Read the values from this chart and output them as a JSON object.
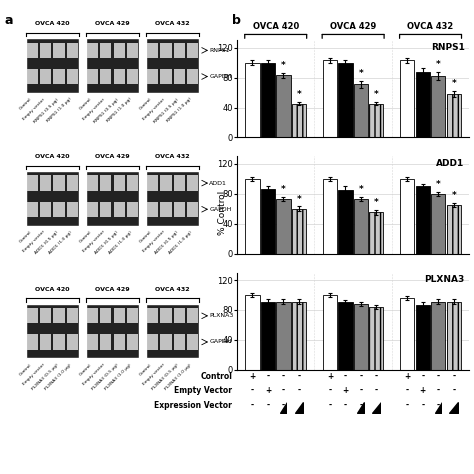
{
  "cell_lines": [
    "OVCA 420",
    "OVCA 429",
    "OVCA 432"
  ],
  "genes": [
    "RNPS1",
    "ADD1",
    "PLXNA3"
  ],
  "bar_colors": [
    "white",
    "black",
    "#808080",
    "#c8c8c8"
  ],
  "bar_hatch": [
    null,
    null,
    null,
    "|||"
  ],
  "bar_edgecolor": "black",
  "ylim": [
    0,
    130
  ],
  "yticks": [
    0,
    40,
    80,
    120
  ],
  "ylabel": "% Control",
  "rnps1_data": {
    "OVCA420": [
      100,
      100,
      83,
      45
    ],
    "OVCA429": [
      103,
      100,
      71,
      45
    ],
    "OVCA432": [
      103,
      88,
      82,
      58
    ]
  },
  "rnps1_errors": {
    "OVCA420": [
      3,
      3,
      3,
      2
    ],
    "OVCA429": [
      3,
      4,
      5,
      2
    ],
    "OVCA432": [
      3,
      5,
      5,
      4
    ]
  },
  "rnps1_sig": {
    "OVCA420": [
      false,
      false,
      true,
      true
    ],
    "OVCA429": [
      false,
      false,
      true,
      true
    ],
    "OVCA432": [
      false,
      false,
      true,
      true
    ]
  },
  "add1_data": {
    "OVCA420": [
      100,
      87,
      73,
      60
    ],
    "OVCA429": [
      100,
      85,
      73,
      55
    ],
    "OVCA432": [
      100,
      90,
      80,
      65
    ]
  },
  "add1_errors": {
    "OVCA420": [
      3,
      4,
      3,
      3
    ],
    "OVCA429": [
      3,
      5,
      3,
      3
    ],
    "OVCA432": [
      3,
      3,
      3,
      3
    ]
  },
  "add1_sig": {
    "OVCA420": [
      false,
      false,
      true,
      true
    ],
    "OVCA429": [
      false,
      false,
      true,
      true
    ],
    "OVCA432": [
      false,
      false,
      true,
      true
    ]
  },
  "plxna3_data": {
    "OVCA420": [
      100,
      91,
      91,
      91
    ],
    "OVCA429": [
      100,
      90,
      88,
      84
    ],
    "OVCA432": [
      96,
      86,
      91,
      91
    ]
  },
  "plxna3_errors": {
    "OVCA420": [
      3,
      3,
      3,
      3
    ],
    "OVCA429": [
      3,
      3,
      3,
      3
    ],
    "OVCA432": [
      3,
      4,
      3,
      3
    ]
  },
  "plxna3_sig": {
    "OVCA420": [
      false,
      false,
      false,
      false
    ],
    "OVCA429": [
      false,
      false,
      false,
      false
    ],
    "OVCA432": [
      false,
      false,
      false,
      false
    ]
  },
  "legend_rows": [
    "Control",
    "Empty Vector",
    "Expression Vector"
  ],
  "legend_control": [
    "+",
    "-",
    "-",
    "-",
    "+",
    "-",
    "-",
    "-",
    "+",
    "-",
    "-",
    "-"
  ],
  "legend_empty": [
    "-",
    "+",
    "-",
    "-",
    "-",
    "+",
    "-",
    "-",
    "-",
    "+",
    "-",
    "-"
  ],
  "legend_expression": [
    "-",
    "-",
    "s",
    "l",
    "-",
    "-",
    "s",
    "l",
    "-",
    "-",
    "s",
    "l"
  ],
  "gel_band_color": "#1a1a1a",
  "gel_bg_color": "#3d3d3d",
  "gel_white_color": "#e8e8e8"
}
